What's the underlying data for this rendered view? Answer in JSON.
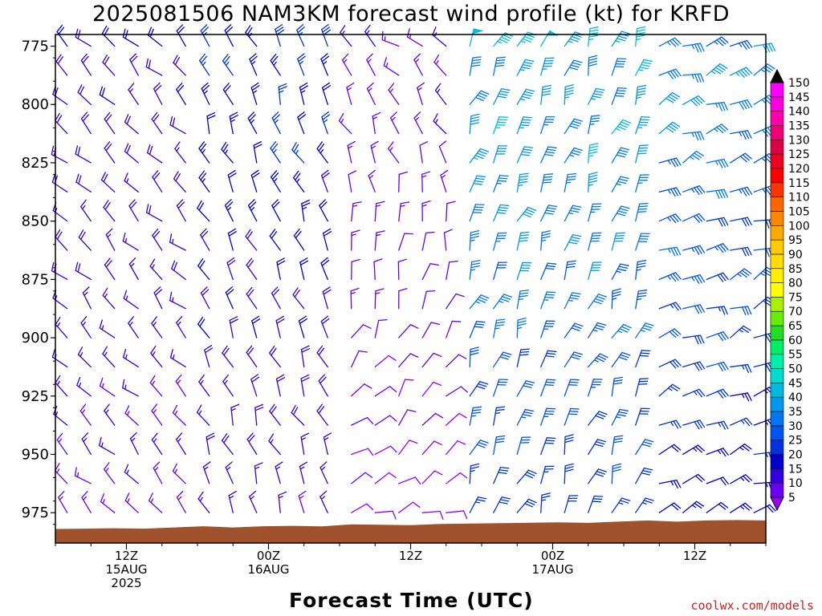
{
  "title": "2025081506 NAM3KM forecast wind profile (kt) for KRFD",
  "xlabel": "Forecast Time (UTC)",
  "credit": "coolwx.com/models",
  "chart_data": {
    "type": "wind-barb-profile",
    "title": "2025081506 NAM3KM forecast wind profile (kt) for KRFD",
    "xlabel": "Forecast Time (UTC)",
    "ylabel": "",
    "y_axis": {
      "ticks": [
        775,
        800,
        825,
        850,
        875,
        900,
        925,
        950,
        975
      ],
      "inverted": true,
      "ylim": [
        770,
        988
      ]
    },
    "x_axis": {
      "range_hours": [
        0,
        60
      ],
      "ticks": [
        {
          "hour": 6,
          "lines": [
            "12Z",
            "15AUG",
            "2025"
          ]
        },
        {
          "hour": 18,
          "lines": [
            "00Z",
            "16AUG"
          ]
        },
        {
          "hour": 30,
          "lines": [
            "12Z"
          ]
        },
        {
          "hour": 42,
          "lines": [
            "00Z",
            "17AUG"
          ]
        },
        {
          "hour": 54,
          "lines": [
            "12Z"
          ]
        }
      ]
    },
    "colorbar": {
      "units": "kt",
      "levels": [
        5,
        10,
        15,
        20,
        25,
        30,
        35,
        40,
        45,
        50,
        55,
        60,
        65,
        70,
        75,
        80,
        85,
        90,
        95,
        100,
        105,
        110,
        115,
        120,
        125,
        130,
        135,
        140,
        145,
        150
      ],
      "colors": [
        "#9900ff",
        "#6a00f0",
        "#3300dd",
        "#0000cc",
        "#0033dd",
        "#0055ee",
        "#0077ee",
        "#0099ee",
        "#00bbdd",
        "#00ddcc",
        "#00eeaa",
        "#00ee66",
        "#22dd22",
        "#66ee00",
        "#aaee00",
        "#ffff00",
        "#ffee00",
        "#ffdd00",
        "#ffcc00",
        "#ffaa00",
        "#ff8800",
        "#ff6600",
        "#ff3300",
        "#ff0000",
        "#ee0022",
        "#dd0044",
        "#ee0077",
        "#ff00aa",
        "#ff00dd",
        "#ff00ff"
      ]
    },
    "terrain": {
      "color": "#a0522d",
      "top_pressure_start": 982,
      "top_pressure_end": 978
    },
    "wind_regimes": [
      {
        "hours": [
          0,
          12
        ],
        "direction": "northwest",
        "speed_kt": [
          10,
          20
        ]
      },
      {
        "hours": [
          12,
          24
        ],
        "direction": "north-northwest",
        "speed_kt": [
          10,
          25
        ]
      },
      {
        "hours": [
          24,
          34
        ],
        "direction": "variable",
        "speed_kt": [
          5,
          15
        ]
      },
      {
        "hours": [
          34,
          50
        ],
        "direction": "north-northeast",
        "speed_kt": [
          15,
          45
        ]
      },
      {
        "hours": [
          50,
          60
        ],
        "direction": "east-northeast",
        "speed_kt": [
          10,
          40
        ]
      }
    ]
  }
}
